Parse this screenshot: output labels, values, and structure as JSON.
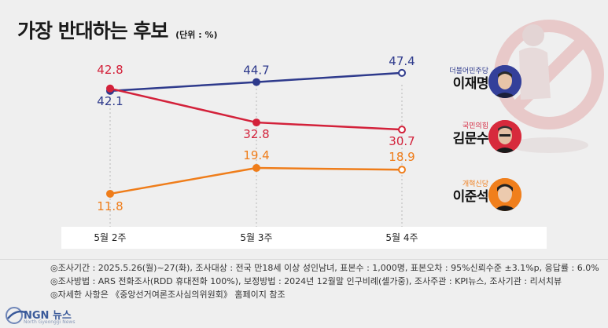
{
  "header": {
    "title": "가장 반대하는 후보",
    "unit": "(단위 : %)"
  },
  "chart_data": {
    "type": "line",
    "categories": [
      "5월 2주",
      "5월 3주",
      "5월 4주"
    ],
    "ylim": [
      0,
      55
    ],
    "series": [
      {
        "name": "이재명",
        "party": "더불어민주당",
        "color": "#2e3a8c",
        "values": [
          42.1,
          44.7,
          47.4
        ],
        "labels": [
          "42.1",
          "44.7",
          "47.4"
        ]
      },
      {
        "name": "김문수",
        "party": "국민의힘",
        "color": "#d3213a",
        "values": [
          42.8,
          32.8,
          30.7
        ],
        "labels": [
          "42.8",
          "32.8",
          "30.7"
        ]
      },
      {
        "name": "이준석",
        "party": "개혁신당",
        "color": "#ef7d1a",
        "values": [
          11.8,
          19.4,
          18.9
        ],
        "labels": [
          "11.8",
          "19.4",
          "18.9"
        ]
      }
    ]
  },
  "notes": [
    "◎조사기간 : 2025.5.26(월)~27(화), 조사대상 : 전국 만18세 이상 성인남녀, 표본수 : 1,000명, 표본오차 : 95%신뢰수준 ±3.1%p, 응답률 : 6.0%",
    "◎조사방법 : ARS 전화조사(RDD 휴대전화 100%), 보정방법 : 2024년 12월말 인구비례(셀가중), 조사주관 : KPI뉴스, 조사기관 : 리서치뷰",
    "◎자세한 사항은 《중앙선거여론조사심의위원회》 홈페이지 참조"
  ],
  "logo": {
    "name": "NGN 뉴스",
    "sub": "North Gyeonggi News"
  }
}
